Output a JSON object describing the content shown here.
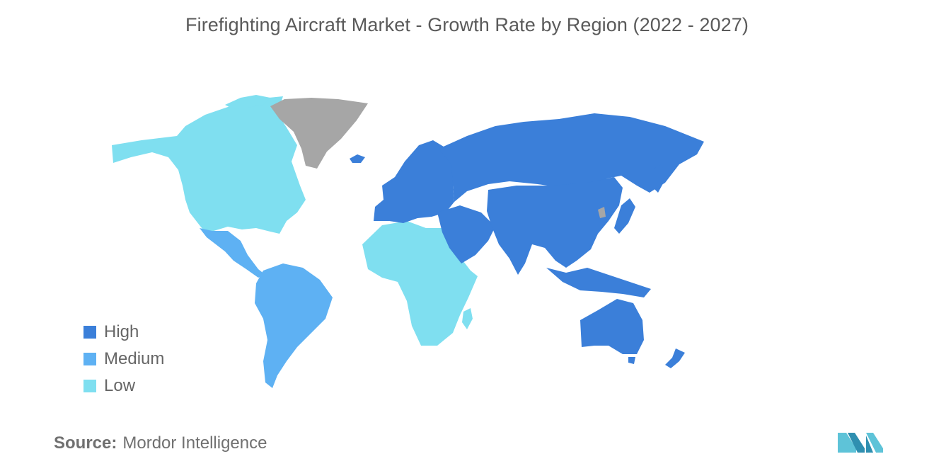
{
  "title": "Firefighting Aircraft Market - Growth Rate by Region (2022 - 2027)",
  "colors": {
    "high": "#3b7fd9",
    "medium": "#5eb1f3",
    "low": "#7fdff0",
    "no_data": "#a6a6a6"
  },
  "legend": [
    {
      "label": "High",
      "color": "#3b7fd9"
    },
    {
      "label": "Medium",
      "color": "#5eb1f3"
    },
    {
      "label": "Low",
      "color": "#7fdff0"
    }
  ],
  "regions": [
    {
      "name": "North America",
      "category": "Low"
    },
    {
      "name": "Central America",
      "category": "Medium"
    },
    {
      "name": "South America",
      "category": "Medium"
    },
    {
      "name": "Africa",
      "category": "Low"
    },
    {
      "name": "Europe",
      "category": "High"
    },
    {
      "name": "Russia",
      "category": "High"
    },
    {
      "name": "Middle East",
      "category": "High"
    },
    {
      "name": "Asia",
      "category": "High"
    },
    {
      "name": "Australia & Oceania",
      "category": "High"
    },
    {
      "name": "Greenland",
      "category": "No data"
    }
  ],
  "source": {
    "label": "Source:",
    "value": "Mordor Intelligence"
  }
}
